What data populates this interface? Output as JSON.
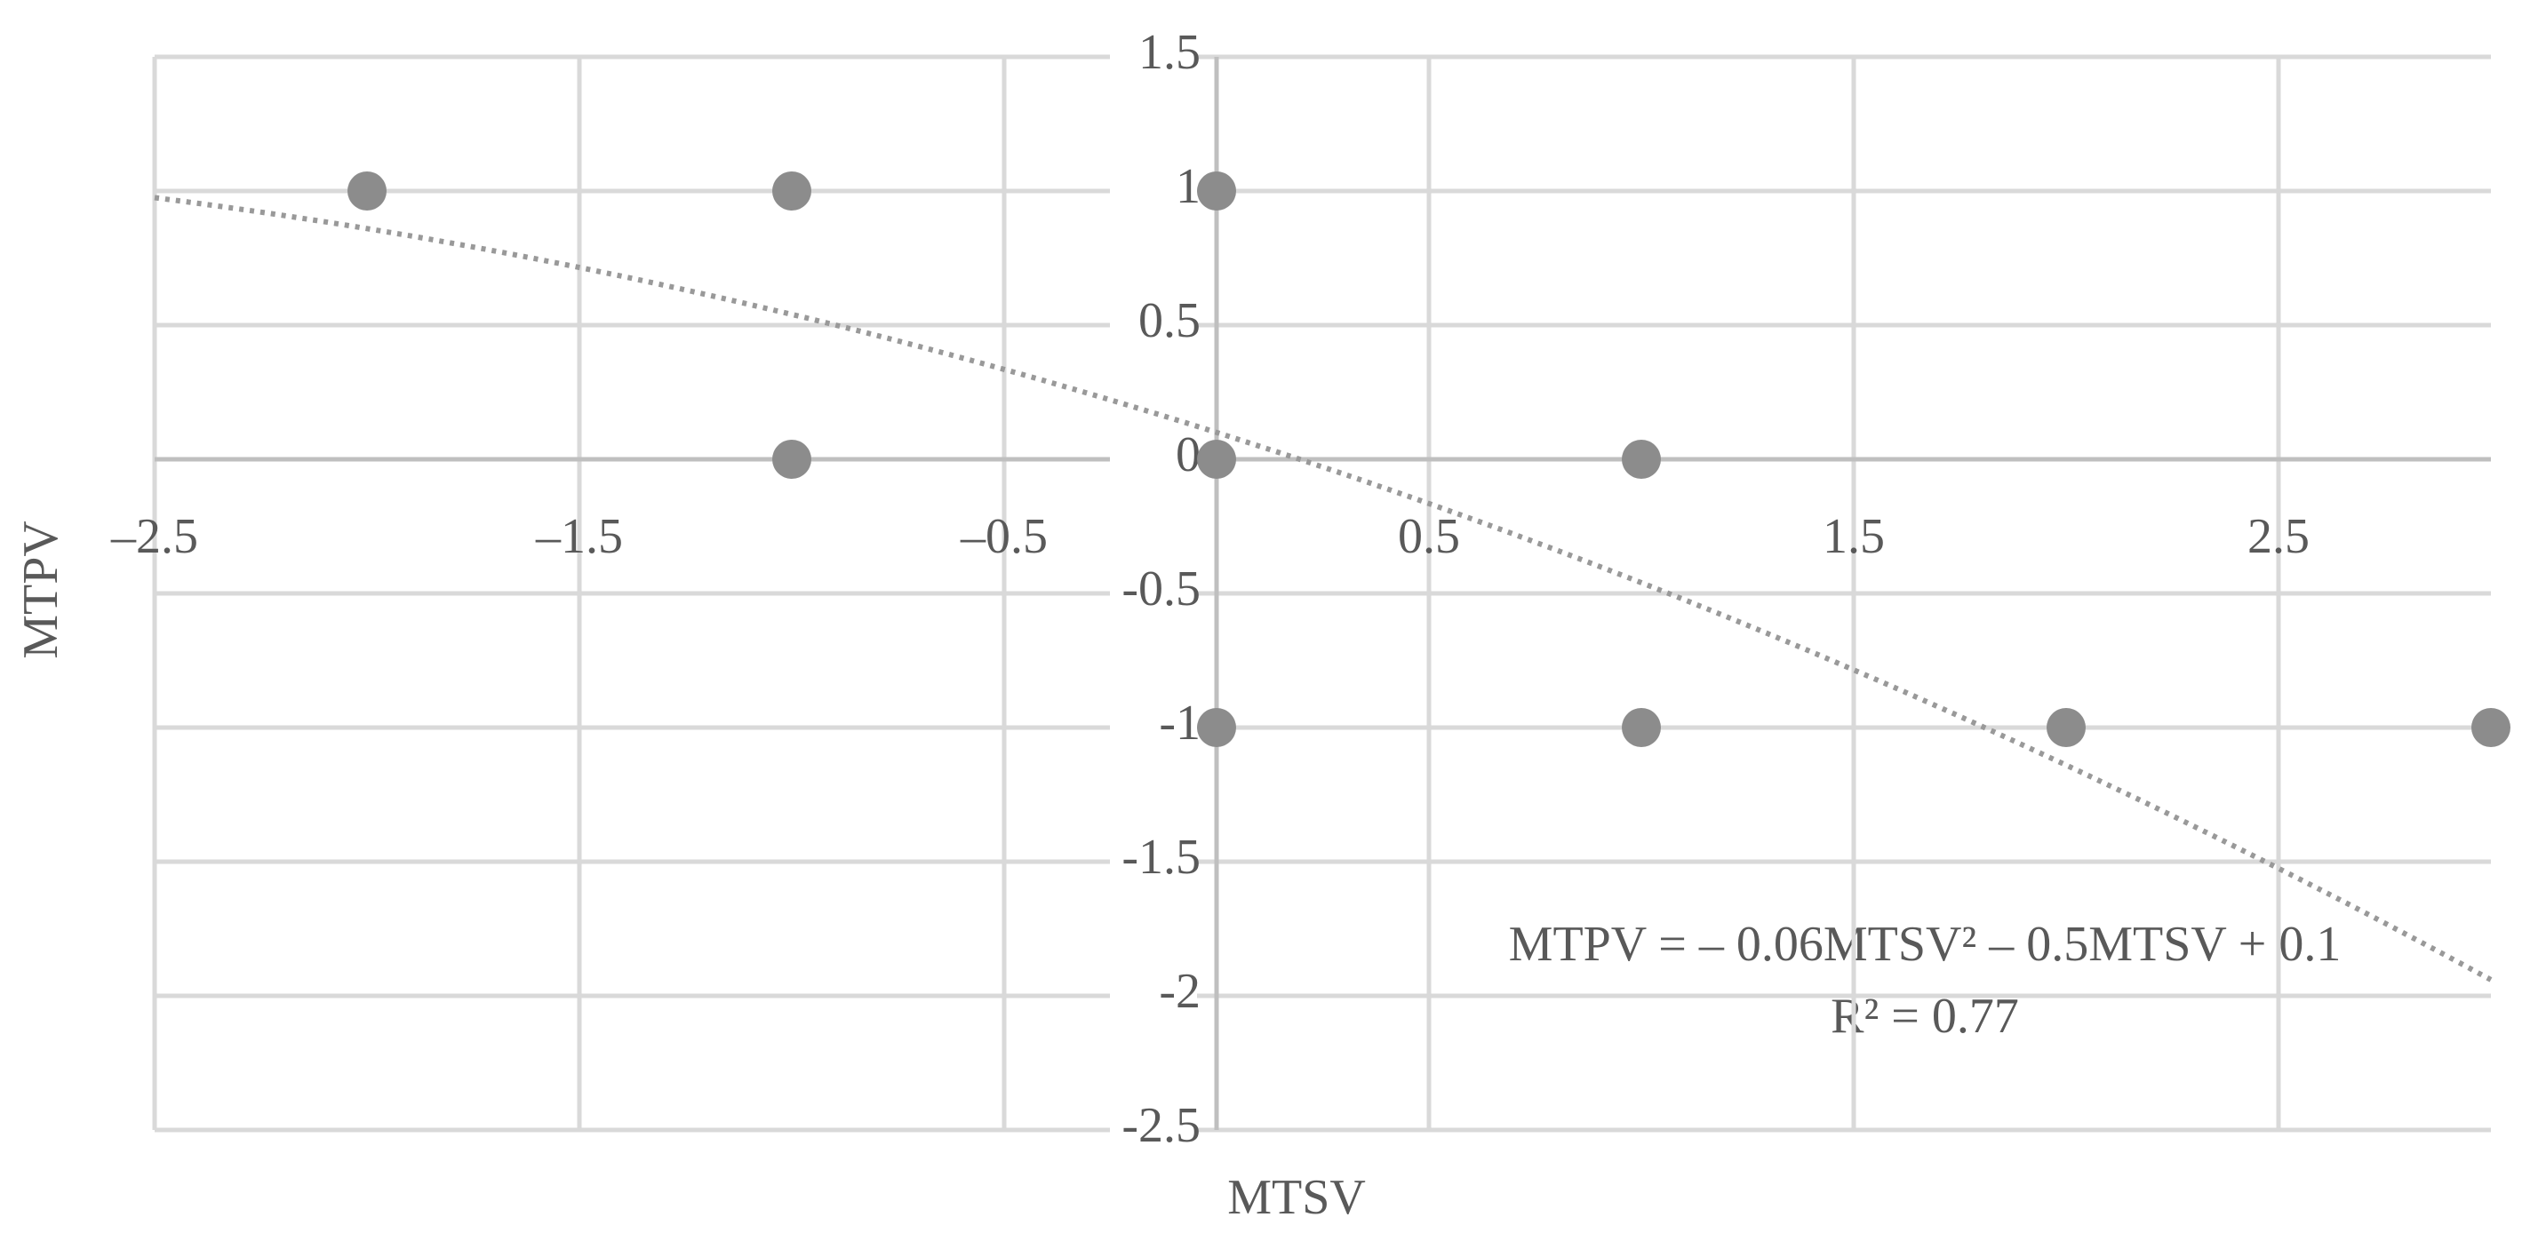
{
  "chart_data": {
    "type": "scatter",
    "x": [
      -2,
      -1,
      0,
      -1,
      0,
      1,
      0,
      1,
      2,
      3
    ],
    "values": [
      1,
      1,
      1,
      0,
      0,
      0,
      -1,
      -1,
      -1,
      -1
    ],
    "color": "#8c8c8c",
    "xlim": [
      -2.5,
      3
    ],
    "ylim": [
      -2.5,
      1.5
    ],
    "xticks": [
      {
        "value": -2.5,
        "label": "–2.5"
      },
      {
        "value": -1.5,
        "label": "–1.5"
      },
      {
        "value": -0.5,
        "label": "–0.5"
      },
      0.5,
      1.5,
      2.5
    ],
    "yticks": [
      1.5,
      1,
      0.5,
      0,
      -0.5,
      -1,
      -1.5,
      -2,
      -2.5
    ],
    "grid": true,
    "x_label": "MTSV",
    "y_label": "MTPV",
    "trendline": {
      "type": "polynomial",
      "coefficients": [
        -0.06,
        -0.5,
        0.1
      ],
      "color": "#999999",
      "equation": "MTPV = – 0.06MTSV² – 0.5MTSV + 0.1",
      "r_squared": "R² = 0.77"
    }
  }
}
